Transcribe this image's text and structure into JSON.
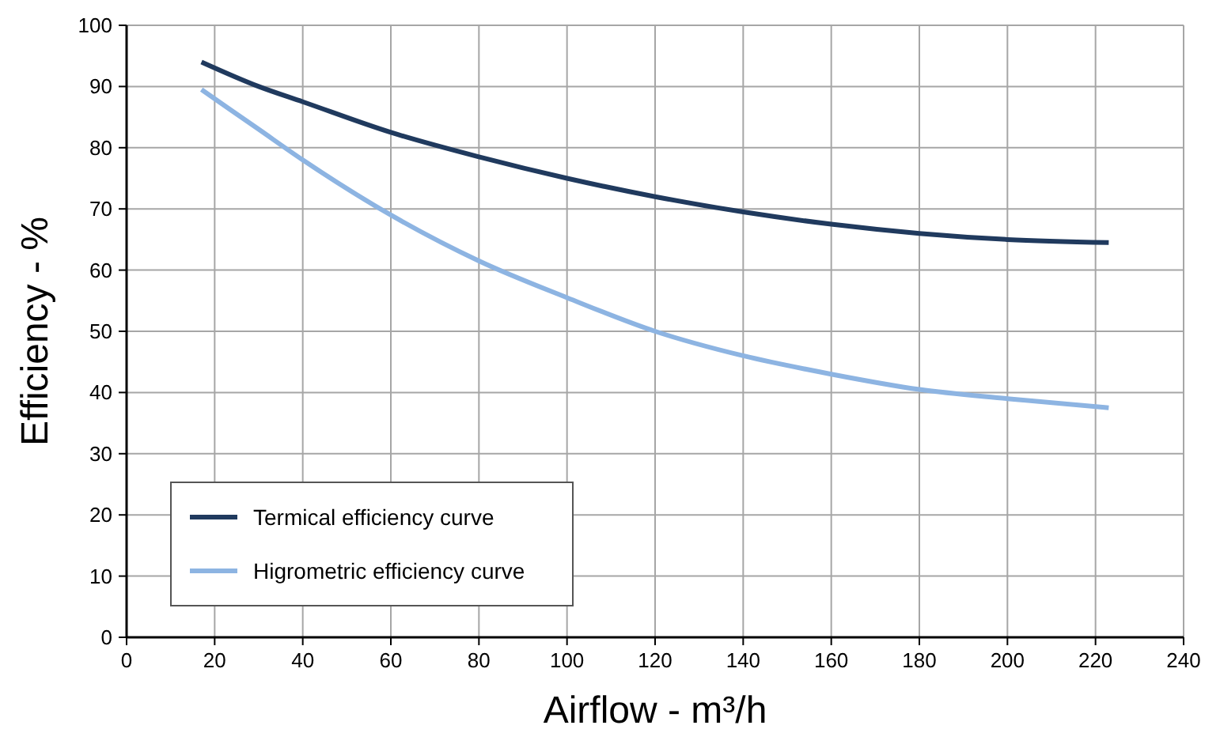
{
  "chart_data": {
    "type": "line",
    "xlabel": "Airflow - m³/h",
    "ylabel": "Efficiency - %",
    "x": [
      17,
      30,
      40,
      60,
      80,
      100,
      120,
      140,
      160,
      180,
      200,
      223
    ],
    "series": [
      {
        "name": "Termical efficiency curve",
        "color": "#203a5e",
        "values": [
          94,
          90,
          87.5,
          82.5,
          78.5,
          75,
          72,
          69.5,
          67.5,
          66,
          65,
          64.5
        ]
      },
      {
        "name": "Higrometric efficiency curve",
        "color": "#8db4e2",
        "values": [
          89.5,
          83,
          78,
          69,
          61.5,
          55.5,
          50,
          46,
          43,
          40.5,
          39,
          37.5
        ]
      }
    ],
    "xlim": [
      0,
      240
    ],
    "xticks": [
      0,
      20,
      40,
      60,
      80,
      100,
      120,
      140,
      160,
      180,
      200,
      220,
      240
    ],
    "ylim": [
      0,
      100
    ],
    "yticks": [
      0,
      10,
      20,
      30,
      40,
      50,
      60,
      70,
      80,
      90,
      100
    ],
    "grid": true,
    "legend": "bottom left",
    "marker": "none",
    "line_style": "solid"
  }
}
